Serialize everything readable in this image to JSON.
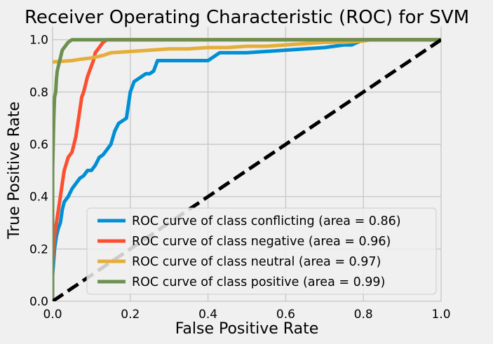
{
  "chart_data": {
    "type": "line",
    "title": "Receiver Operating Characteristic (ROC) for SVM",
    "xlabel": "False Positive Rate",
    "ylabel": "True Positive Rate",
    "xlim": [
      0.0,
      1.0
    ],
    "ylim": [
      0.0,
      1.05
    ],
    "xticks": [
      0.0,
      0.2,
      0.4,
      0.6,
      0.8,
      1.0
    ],
    "yticks": [
      0.0,
      0.2,
      0.4,
      0.6,
      0.8,
      1.0
    ],
    "xtick_labels": [
      "0.0",
      "0.2",
      "0.4",
      "0.6",
      "0.8",
      "1.0"
    ],
    "ytick_labels": [
      "0.0",
      "0.2",
      "0.4",
      "0.6",
      "0.8",
      "1.0"
    ],
    "grid": true,
    "legend_position": "lower-right",
    "series": [
      {
        "name": "ROC curve of class conflicting (area = 0.86)",
        "color": "#008fd5",
        "x": [
          0.0,
          0.0,
          0.005,
          0.01,
          0.015,
          0.02,
          0.025,
          0.03,
          0.04,
          0.05,
          0.06,
          0.07,
          0.08,
          0.09,
          0.1,
          0.11,
          0.12,
          0.13,
          0.14,
          0.15,
          0.16,
          0.17,
          0.18,
          0.19,
          0.2,
          0.21,
          0.22,
          0.23,
          0.24,
          0.25,
          0.26,
          0.27,
          0.28,
          0.3,
          0.35,
          0.4,
          0.43,
          0.5,
          0.6,
          0.7,
          0.75,
          0.77,
          0.8,
          1.0
        ],
        "y": [
          0.0,
          0.1,
          0.2,
          0.25,
          0.28,
          0.3,
          0.35,
          0.38,
          0.4,
          0.43,
          0.45,
          0.47,
          0.48,
          0.5,
          0.5,
          0.52,
          0.55,
          0.56,
          0.58,
          0.6,
          0.65,
          0.68,
          0.69,
          0.7,
          0.8,
          0.84,
          0.85,
          0.86,
          0.87,
          0.87,
          0.88,
          0.92,
          0.92,
          0.92,
          0.92,
          0.92,
          0.95,
          0.95,
          0.96,
          0.97,
          0.98,
          0.98,
          1.0,
          1.0
        ]
      },
      {
        "name": "ROC curve of class negative (area = 0.96)",
        "color": "#fc4f30",
        "x": [
          0.0,
          0.0,
          0.005,
          0.01,
          0.015,
          0.02,
          0.025,
          0.03,
          0.04,
          0.05,
          0.055,
          0.06,
          0.065,
          0.07,
          0.075,
          0.08,
          0.085,
          0.09,
          0.095,
          0.1,
          0.105,
          0.11,
          0.12,
          0.13,
          0.14,
          1.0
        ],
        "y": [
          0.0,
          0.15,
          0.25,
          0.3,
          0.35,
          0.4,
          0.45,
          0.5,
          0.55,
          0.57,
          0.6,
          0.63,
          0.68,
          0.73,
          0.78,
          0.8,
          0.83,
          0.86,
          0.88,
          0.9,
          0.92,
          0.95,
          0.97,
          0.99,
          1.0,
          1.0
        ]
      },
      {
        "name": "ROC curve of class neutral (area = 0.97)",
        "color": "#e5ae38",
        "x": [
          0.0,
          0.05,
          0.07,
          0.1,
          0.13,
          0.15,
          0.2,
          0.25,
          0.3,
          0.35,
          0.4,
          0.45,
          0.5,
          0.55,
          0.6,
          0.65,
          0.7,
          0.75,
          0.8,
          0.82,
          1.0
        ],
        "y": [
          0.915,
          0.92,
          0.925,
          0.93,
          0.94,
          0.95,
          0.955,
          0.96,
          0.965,
          0.965,
          0.97,
          0.97,
          0.975,
          0.975,
          0.98,
          0.985,
          0.99,
          0.99,
          0.995,
          1.0,
          1.0
        ]
      },
      {
        "name": "ROC curve of class positive (area = 0.99)",
        "color": "#6d904f",
        "x": [
          0.0,
          0.0,
          0.003,
          0.005,
          0.008,
          0.01,
          0.012,
          0.015,
          0.02,
          0.025,
          0.03,
          0.035,
          0.04,
          0.045,
          0.05,
          1.0
        ],
        "y": [
          0.0,
          0.5,
          0.7,
          0.78,
          0.8,
          0.85,
          0.88,
          0.9,
          0.93,
          0.96,
          0.97,
          0.98,
          0.99,
          0.995,
          1.0,
          1.0
        ]
      },
      {
        "name": "",
        "color": "#000000",
        "dashed": true,
        "x": [
          0.0,
          1.0
        ],
        "y": [
          0.0,
          1.0
        ]
      }
    ]
  }
}
